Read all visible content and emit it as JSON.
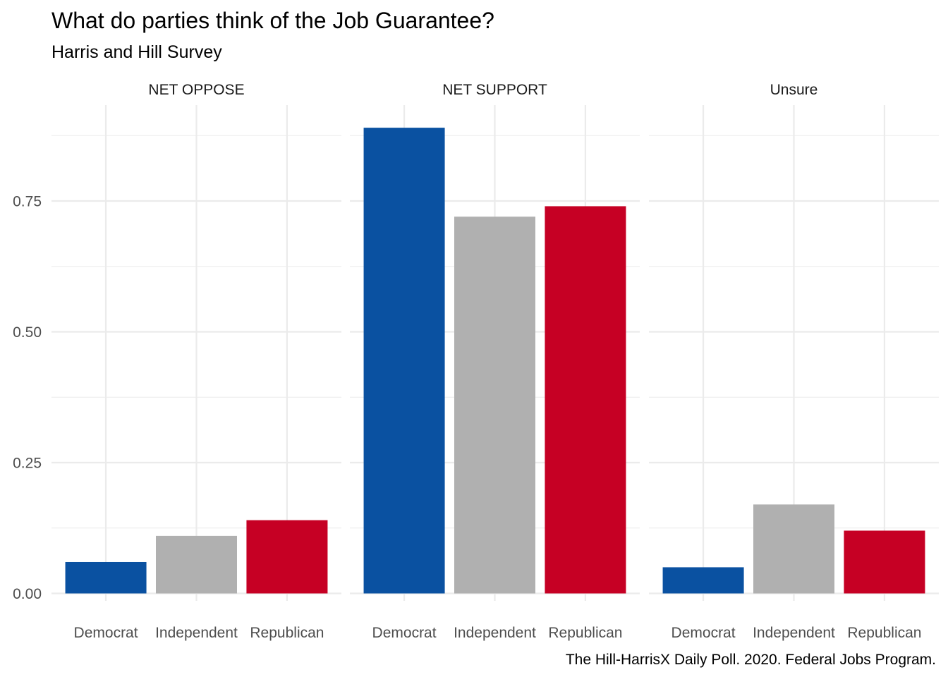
{
  "chart_data": {
    "type": "bar",
    "title": "What do parties think of the Job Guarantee?",
    "subtitle": "Harris and Hill Survey",
    "caption": "The Hill-HarrisX Daily Poll. 2020. Federal Jobs Program.",
    "xlabel": "",
    "ylabel": "",
    "ylim": [
      0,
      0.9
    ],
    "yticks": [
      "0.00",
      "0.25",
      "0.50",
      "0.75"
    ],
    "ytick_values": [
      0,
      0.25,
      0.5,
      0.75
    ],
    "categories": [
      "Democrat",
      "Independent",
      "Republican"
    ],
    "colors": {
      "Democrat": "#0a51a1",
      "Independent": "#b0b0b0",
      "Republican": "#c60024"
    },
    "grid": true,
    "legend": "none",
    "facets": [
      {
        "name": "NET OPPOSE",
        "values": [
          0.06,
          0.11,
          0.14
        ]
      },
      {
        "name": "NET SUPPORT",
        "values": [
          0.89,
          0.72,
          0.74
        ]
      },
      {
        "name": "Unsure",
        "values": [
          0.05,
          0.17,
          0.12
        ]
      }
    ]
  }
}
